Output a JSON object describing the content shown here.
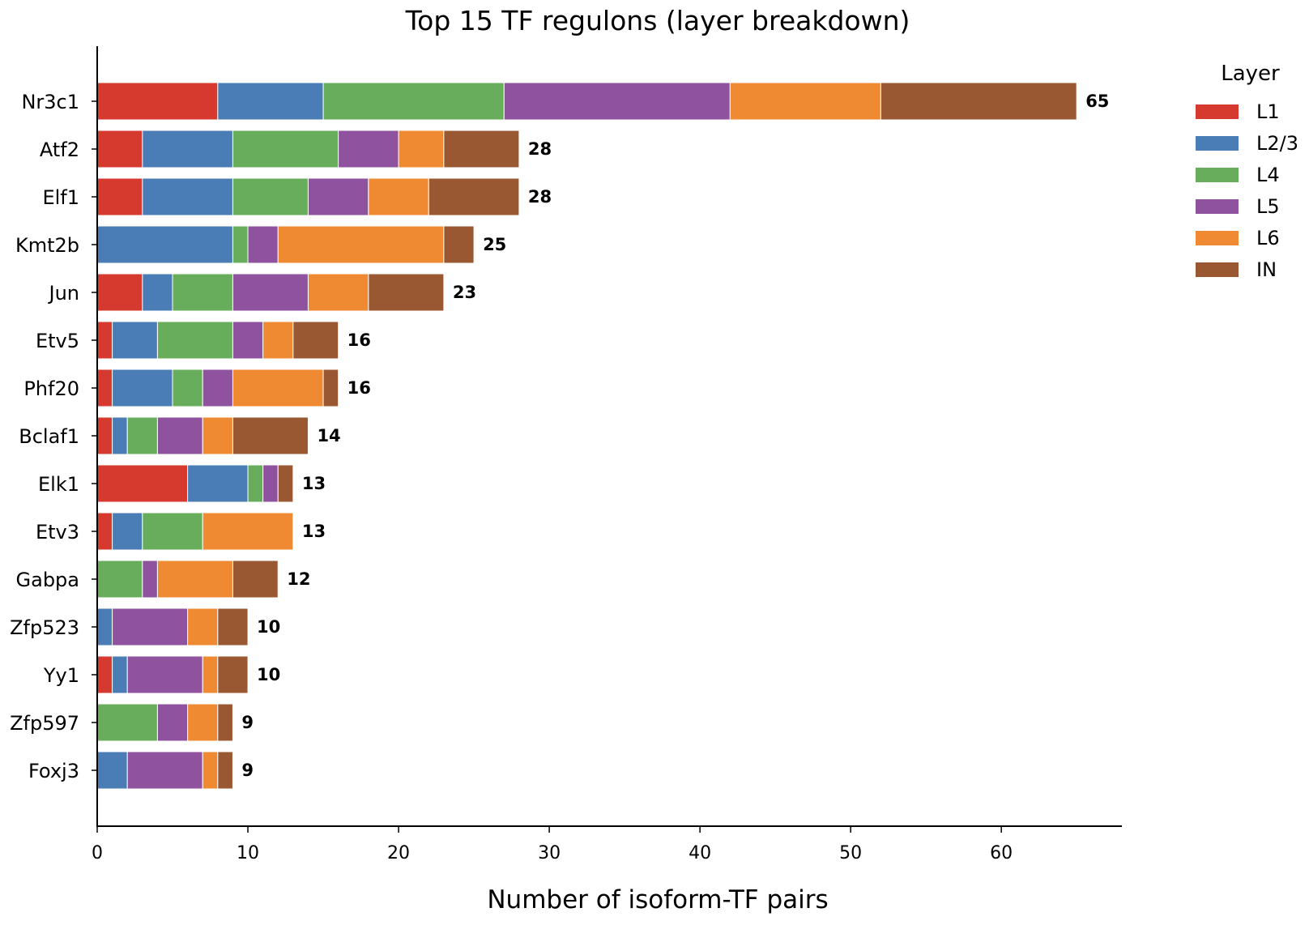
{
  "chart_data": {
    "type": "bar",
    "orientation": "horizontal",
    "stacked": true,
    "title": "Top 15 TF regulons (layer breakdown)",
    "xlabel": "Number of isoform-TF pairs",
    "ylabel": "",
    "xlim": [
      0,
      68
    ],
    "xticks": [
      0,
      10,
      20,
      30,
      40,
      50,
      60
    ],
    "grid": false,
    "legend_title": "Layer",
    "legend_position": "right",
    "categories": [
      "Nr3c1",
      "Atf2",
      "Elf1",
      "Kmt2b",
      "Jun",
      "Etv5",
      "Phf20",
      "Bclaf1",
      "Elk1",
      "Etv3",
      "Gabpa",
      "Zfp523",
      "Yy1",
      "Zfp597",
      "Foxj3"
    ],
    "totals": [
      65,
      28,
      28,
      25,
      23,
      16,
      16,
      14,
      13,
      13,
      12,
      10,
      10,
      9,
      9
    ],
    "series": [
      {
        "name": "L1",
        "color": "#d63a2f",
        "values": [
          8,
          3,
          3,
          0,
          3,
          1,
          1,
          1,
          6,
          1,
          0,
          0,
          1,
          0,
          0
        ]
      },
      {
        "name": "L2/3",
        "color": "#4a7db5",
        "values": [
          7,
          6,
          6,
          9,
          2,
          3,
          4,
          1,
          4,
          2,
          0,
          1,
          1,
          0,
          2
        ]
      },
      {
        "name": "L4",
        "color": "#67ad5b",
        "values": [
          12,
          7,
          5,
          1,
          4,
          5,
          2,
          2,
          1,
          4,
          3,
          0,
          0,
          4,
          0
        ]
      },
      {
        "name": "L5",
        "color": "#8e529e",
        "values": [
          15,
          4,
          4,
          2,
          5,
          2,
          2,
          3,
          1,
          0,
          1,
          5,
          5,
          2,
          5
        ]
      },
      {
        "name": "L6",
        "color": "#ef8a33",
        "values": [
          10,
          3,
          4,
          11,
          4,
          2,
          6,
          2,
          0,
          6,
          5,
          2,
          1,
          2,
          1
        ]
      },
      {
        "name": "IN",
        "color": "#9a5832",
        "values": [
          13,
          5,
          6,
          2,
          5,
          3,
          1,
          5,
          1,
          0,
          3,
          2,
          2,
          1,
          1
        ]
      }
    ]
  }
}
